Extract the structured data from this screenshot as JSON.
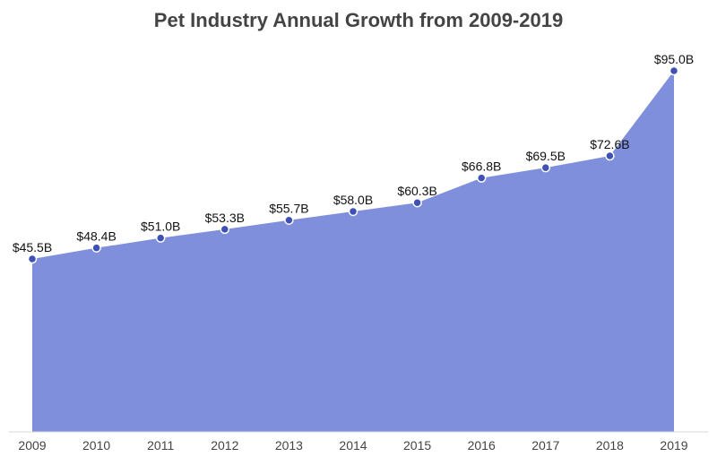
{
  "chart_data": {
    "type": "area",
    "title": "Pet Industry Annual Growth from 2009-2019",
    "xlabel": "",
    "ylabel": "",
    "categories": [
      "2009",
      "2010",
      "2011",
      "2012",
      "2013",
      "2014",
      "2015",
      "2016",
      "2017",
      "2018",
      "2019"
    ],
    "values": [
      45.5,
      48.4,
      51.0,
      53.3,
      55.7,
      58.0,
      60.3,
      66.8,
      69.5,
      72.6,
      95.0
    ],
    "data_labels": [
      "$45.5B",
      "$48.4B",
      "$51.0B",
      "$53.3B",
      "$55.7B",
      "$58.0B",
      "$60.3B",
      "$66.8B",
      "$69.5B",
      "$72.6B",
      "$95.0B"
    ],
    "unit": "$B",
    "ylim": [
      0,
      100
    ],
    "grid": false,
    "legend": "none",
    "colors": {
      "fill": "#7f8fdc",
      "marker": "#3f51b5",
      "marker_stroke": "#ffffff"
    }
  }
}
